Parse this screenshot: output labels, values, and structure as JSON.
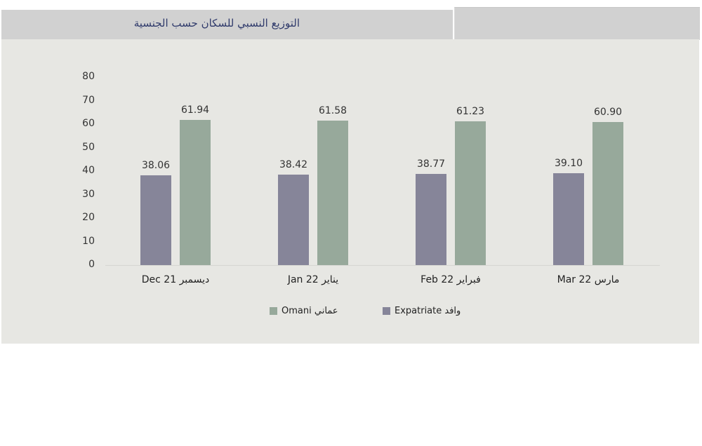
{
  "header": {
    "title": "التوزيع النسبي للسكان حسب الجنسية"
  },
  "colors": {
    "expatriate": "#868599",
    "omani": "#97a99b",
    "header_bg": "#d1d1d1",
    "panel_bg": "#e7e7e3"
  },
  "legend": [
    {
      "label": "Omani عماني",
      "color": "#97a99b"
    },
    {
      "label": "Expatriate وافد",
      "color": "#868599"
    }
  ],
  "chart_data": {
    "type": "bar",
    "title": "التوزيع النسبي للسكان حسب الجنسية",
    "categories": [
      "Dec 21 ديسمبر",
      "Jan 22 يناير",
      "Feb 22 فبراير",
      "Mar 22 مارس"
    ],
    "series": [
      {
        "name": "Expatriate وافد",
        "color": "#868599",
        "values": [
          38.06,
          38.42,
          38.77,
          39.1
        ],
        "labels": [
          "38.06",
          "38.42",
          "38.77",
          "39.10"
        ]
      },
      {
        "name": "Omani عماني",
        "color": "#97a99b",
        "values": [
          61.94,
          61.58,
          61.23,
          60.9
        ],
        "labels": [
          "61.94",
          "61.58",
          "61.23",
          "60.90"
        ]
      }
    ],
    "yticks": [
      "0",
      "10",
      "20",
      "30",
      "40",
      "50",
      "60",
      "70",
      "80"
    ],
    "ylim": [
      0,
      80
    ],
    "xlabel": "",
    "ylabel": "",
    "grid": false,
    "legend_position": "bottom"
  }
}
